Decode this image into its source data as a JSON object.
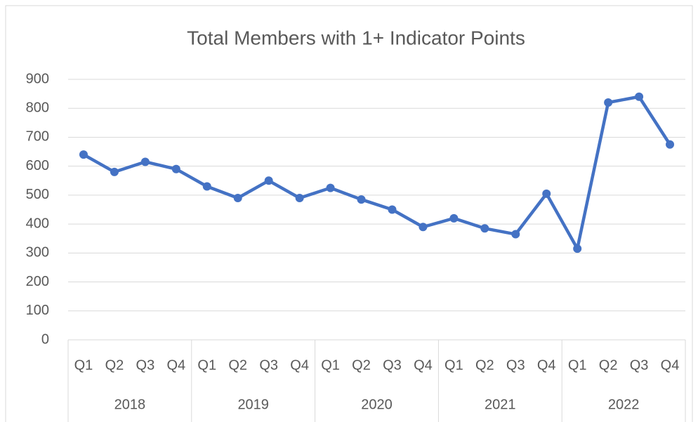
{
  "chart_data": {
    "type": "line",
    "title": "Total Members with 1+ Indicator Points",
    "categories": [
      "Q1",
      "Q2",
      "Q3",
      "Q4",
      "Q1",
      "Q2",
      "Q3",
      "Q4",
      "Q1",
      "Q2",
      "Q3",
      "Q4",
      "Q1",
      "Q2",
      "Q3",
      "Q4",
      "Q1",
      "Q2",
      "Q3",
      "Q4"
    ],
    "category_groups": [
      "2018",
      "2019",
      "2020",
      "2021",
      "2022"
    ],
    "series": [
      {
        "name": "Total Members",
        "color": "#4472c4",
        "values": [
          640,
          580,
          615,
          590,
          530,
          490,
          550,
          490,
          525,
          485,
          450,
          390,
          420,
          385,
          365,
          505,
          315,
          820,
          840,
          675
        ]
      }
    ],
    "ylim": [
      0,
      900
    ],
    "yticks": [
      0,
      100,
      200,
      300,
      400,
      500,
      600,
      700,
      800,
      900
    ],
    "grid": true
  }
}
